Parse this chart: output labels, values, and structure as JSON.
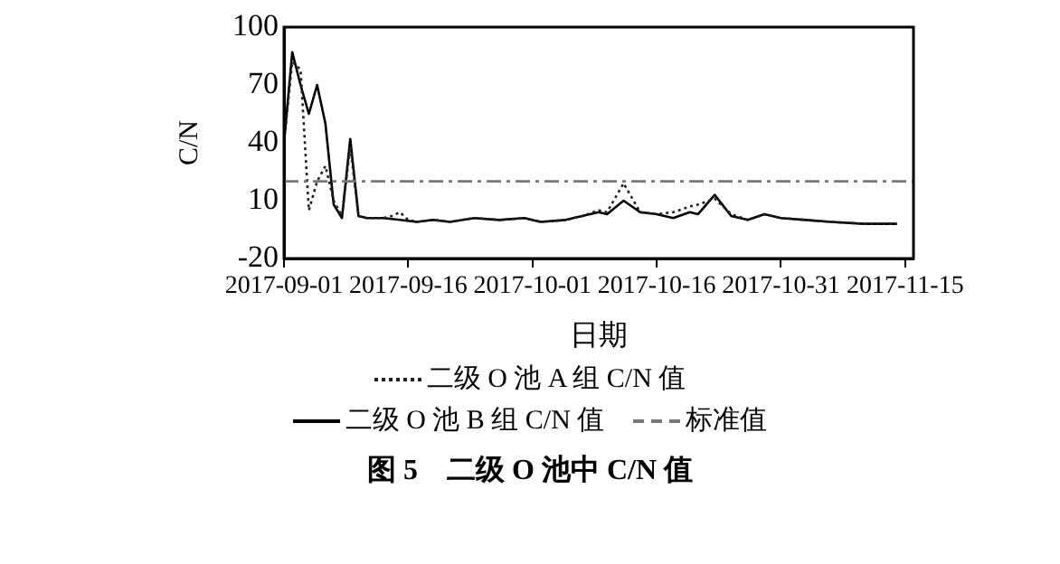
{
  "chart_data": {
    "type": "line",
    "title": "图 5　二级 O 池中 C/N 值",
    "xlabel": "日期",
    "ylabel": "C/N",
    "xlim": [
      "2017-09-01",
      "2017-11-16"
    ],
    "xticks": [
      "2017-09-01",
      "2017-09-16",
      "2017-10-01",
      "2017-10-16",
      "2017-10-31",
      "2017-11-15"
    ],
    "ylim": [
      -20,
      100
    ],
    "yticks": [
      100,
      70,
      40,
      10,
      -20
    ],
    "grid": false,
    "legend": "bottom",
    "marker": "none",
    "series": [
      {
        "name": "二级 O 池 A 组 C/N 值",
        "color": "#222222",
        "line_style": "dotted",
        "x": [
          "2017-09-01",
          "2017-09-02",
          "2017-09-03",
          "2017-09-04",
          "2017-09-05",
          "2017-09-06",
          "2017-09-07",
          "2017-09-08",
          "2017-09-09",
          "2017-09-10",
          "2017-09-11",
          "2017-09-13",
          "2017-09-14",
          "2017-09-15",
          "2017-09-16",
          "2017-09-17",
          "2017-09-19",
          "2017-09-21",
          "2017-09-24",
          "2017-09-27",
          "2017-09-30",
          "2017-10-02",
          "2017-10-05",
          "2017-10-07",
          "2017-10-09",
          "2017-10-10",
          "2017-10-12",
          "2017-10-14",
          "2017-10-16",
          "2017-10-18",
          "2017-10-20",
          "2017-10-21",
          "2017-10-23",
          "2017-10-25",
          "2017-10-27",
          "2017-10-29",
          "2017-10-31",
          "2017-11-03",
          "2017-11-06",
          "2017-11-10",
          "2017-11-14"
        ],
        "values": [
          40,
          82,
          78,
          5,
          20,
          28,
          10,
          2,
          38,
          2,
          1,
          1,
          2,
          4,
          0,
          -1,
          0,
          -1,
          1,
          0,
          1,
          -1,
          0,
          2,
          5,
          4,
          19,
          4,
          3,
          4,
          7,
          8,
          11,
          3,
          0,
          3,
          1,
          0,
          -1,
          -2,
          -2
        ]
      },
      {
        "name": "二级 O 池 B 组 C/N 值",
        "color": "#000000",
        "line_style": "solid",
        "x": [
          "2017-09-01",
          "2017-09-02",
          "2017-09-03",
          "2017-09-04",
          "2017-09-05",
          "2017-09-06",
          "2017-09-07",
          "2017-09-08",
          "2017-09-09",
          "2017-09-10",
          "2017-09-11",
          "2017-09-13",
          "2017-09-15",
          "2017-09-17",
          "2017-09-19",
          "2017-09-21",
          "2017-09-24",
          "2017-09-27",
          "2017-09-30",
          "2017-10-02",
          "2017-10-05",
          "2017-10-07",
          "2017-10-09",
          "2017-10-10",
          "2017-10-12",
          "2017-10-14",
          "2017-10-16",
          "2017-10-18",
          "2017-10-20",
          "2017-10-21",
          "2017-10-23",
          "2017-10-25",
          "2017-10-27",
          "2017-10-29",
          "2017-10-31",
          "2017-11-03",
          "2017-11-06",
          "2017-11-10",
          "2017-11-14"
        ],
        "values": [
          40,
          87,
          70,
          55,
          70,
          50,
          8,
          1,
          42,
          2,
          1,
          1,
          0,
          -1,
          0,
          -1,
          1,
          0,
          1,
          -1,
          0,
          2,
          4,
          3,
          10,
          4,
          3,
          1,
          4,
          3,
          13,
          2,
          0,
          3,
          1,
          0,
          -1,
          -2,
          -2
        ]
      }
    ],
    "ref_lines": [
      {
        "axis": "y",
        "value": 20,
        "label": "标准值",
        "color": "#777777",
        "line_style": "dashed"
      }
    ]
  }
}
